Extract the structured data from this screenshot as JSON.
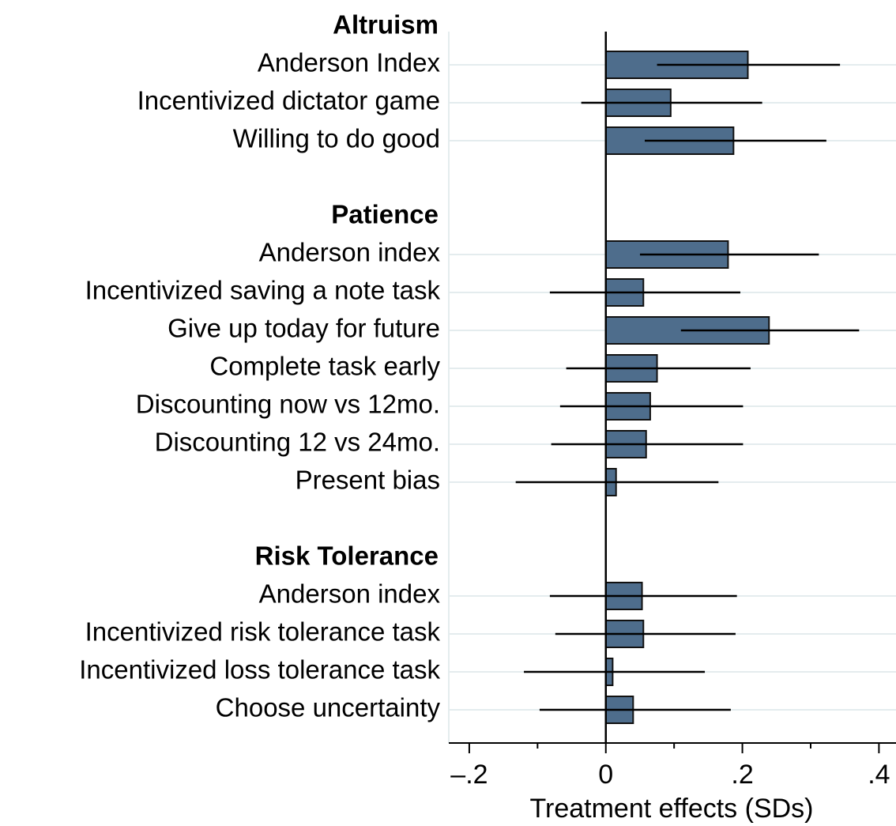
{
  "chart_data": {
    "type": "bar",
    "x_label": "Treatment effects (SDs)",
    "xlim": [
      -0.23,
      0.425
    ],
    "xticks": [
      {
        "value": -0.2,
        "label": "–.2"
      },
      0,
      {
        "value": 0.2,
        "label": ".2"
      },
      {
        "value": 0.4,
        "label": ".4"
      }
    ],
    "xminor_ticks": [
      -0.1,
      0.1,
      0.3
    ],
    "color": "#4e6d8c",
    "grid": true,
    "groups": [
      {
        "name": "Altruism",
        "categories": [
          "Anderson Index",
          "Incentivized dictator game",
          "Willing to do good"
        ],
        "values": [
          0.208,
          0.095,
          0.187
        ],
        "ci_low": [
          0.075,
          -0.036,
          0.057
        ],
        "ci_high": [
          0.343,
          0.229,
          0.323
        ]
      },
      {
        "name": "Patience",
        "categories": [
          "Anderson index",
          "Incentivized saving a note task",
          "Give up today for future",
          "Complete task early",
          "Discounting now vs 12mo.",
          "Discounting 12 vs 24mo.",
          "Present bias"
        ],
        "values": [
          0.179,
          0.055,
          0.239,
          0.075,
          0.065,
          0.059,
          0.015
        ],
        "ci_low": [
          0.05,
          -0.082,
          0.11,
          -0.058,
          -0.067,
          -0.08,
          -0.132
        ],
        "ci_high": [
          0.312,
          0.197,
          0.371,
          0.212,
          0.201,
          0.201,
          0.165
        ]
      },
      {
        "name": "Risk Tolerance",
        "categories": [
          "Anderson index",
          "Incentivized risk tolerance task",
          "Incentivized loss tolerance task",
          "Choose uncertainty"
        ],
        "values": [
          0.053,
          0.055,
          0.01,
          0.04
        ],
        "ci_low": [
          -0.082,
          -0.074,
          -0.12,
          -0.097
        ],
        "ci_high": [
          0.192,
          0.19,
          0.145,
          0.183
        ]
      }
    ]
  }
}
